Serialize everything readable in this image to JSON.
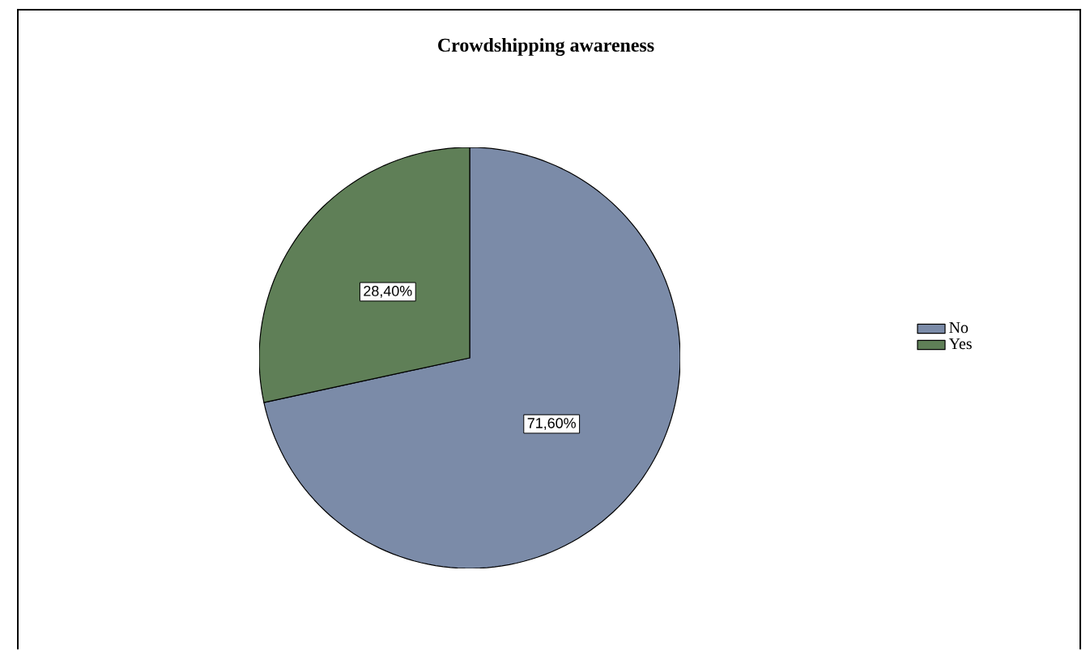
{
  "chart_data": {
    "type": "pie",
    "title": "Crowdshipping awareness",
    "categories": [
      "No",
      "Yes"
    ],
    "values": [
      71.6,
      28.4
    ],
    "colors": [
      "#7b8ba8",
      "#5f7f57"
    ],
    "value_labels": [
      "71,60%",
      "28,40%"
    ],
    "legend": "right"
  }
}
